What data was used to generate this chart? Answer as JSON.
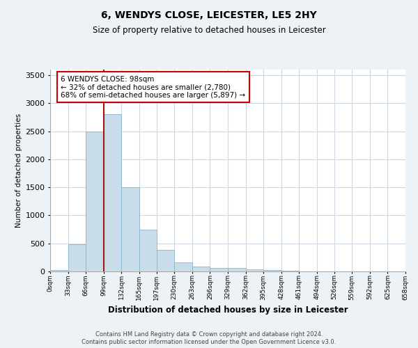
{
  "title": "6, WENDYS CLOSE, LEICESTER, LE5 2HY",
  "subtitle": "Size of property relative to detached houses in Leicester",
  "xlabel": "Distribution of detached houses by size in Leicester",
  "ylabel": "Number of detached properties",
  "bar_color": "#c8dcea",
  "bar_edge_color": "#8ab4cc",
  "bar_values": [
    30,
    480,
    2500,
    2800,
    1500,
    750,
    380,
    160,
    90,
    60,
    60,
    40,
    20,
    10,
    5,
    5,
    5,
    3,
    2,
    1
  ],
  "bin_edges": [
    0,
    33,
    66,
    99,
    132,
    165,
    197,
    230,
    263,
    296,
    329,
    362,
    395,
    428,
    461,
    494,
    526,
    559,
    592,
    625,
    658
  ],
  "xlabels": [
    "0sqm",
    "33sqm",
    "66sqm",
    "99sqm",
    "132sqm",
    "165sqm",
    "197sqm",
    "230sqm",
    "263sqm",
    "296sqm",
    "329sqm",
    "362sqm",
    "395sqm",
    "428sqm",
    "461sqm",
    "494sqm",
    "526sqm",
    "559sqm",
    "592sqm",
    "625sqm",
    "658sqm"
  ],
  "vline_x": 99,
  "vline_color": "#aa1111",
  "ylim": [
    0,
    3600
  ],
  "yticks": [
    0,
    500,
    1000,
    1500,
    2000,
    2500,
    3000,
    3500
  ],
  "annotation_text": "6 WENDYS CLOSE: 98sqm\n← 32% of detached houses are smaller (2,780)\n68% of semi-detached houses are larger (5,897) →",
  "annotation_box_color": "white",
  "annotation_box_edgecolor": "#cc0000",
  "footer_text1": "Contains HM Land Registry data © Crown copyright and database right 2024.",
  "footer_text2": "Contains public sector information licensed under the Open Government Licence v3.0.",
  "bg_color": "#edf2f7",
  "plot_bg_color": "white",
  "grid_color": "#ccd8e4"
}
